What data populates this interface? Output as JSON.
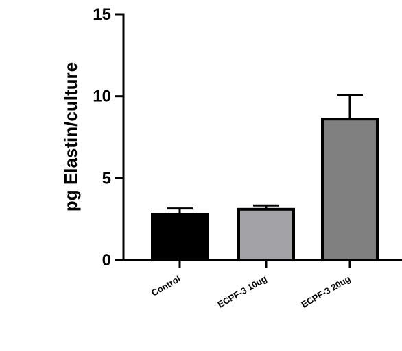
{
  "chart_data": {
    "type": "bar",
    "title": "",
    "xlabel": "",
    "ylabel": "pg Elastin/culture",
    "ylim": [
      0,
      15
    ],
    "yticks": [
      0,
      5,
      10,
      15
    ],
    "grid": false,
    "categories": [
      "Control",
      "ECPF-3 10ug",
      "ECPF-3 20ug"
    ],
    "values": [
      2.8,
      3.1,
      8.6
    ],
    "error_upper": [
      3.15,
      3.33,
      10.05
    ],
    "colors": [
      "#000000",
      "#a3a3a7",
      "#808080"
    ]
  }
}
